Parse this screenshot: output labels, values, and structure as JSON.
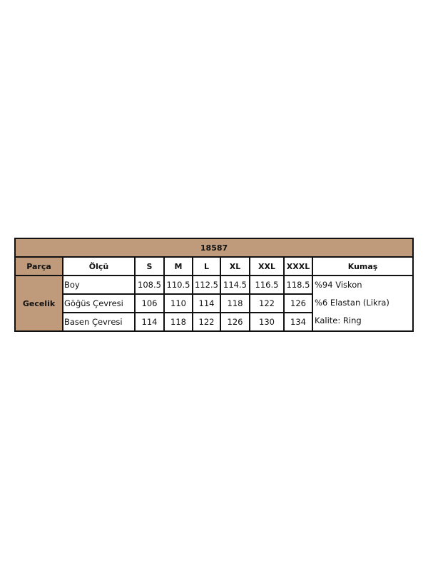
{
  "title": "18587",
  "colors": {
    "header_bg": "#bf9b7b",
    "border": "#111111"
  },
  "headers": [
    "Parça",
    "Ölçü",
    "S",
    "M",
    "L",
    "XL",
    "XXL",
    "XXXL",
    "Kumaş"
  ],
  "part": "Gecelik",
  "rows": [
    {
      "measure": "Boy",
      "values": [
        "108.5",
        "110.5",
        "112.5",
        "114.5",
        "116.5",
        "118.5"
      ]
    },
    {
      "measure": "Göğüs Çevresi",
      "values": [
        "106",
        "110",
        "114",
        "118",
        "122",
        "126"
      ]
    },
    {
      "measure": "Basen Çevresi",
      "values": [
        "114",
        "118",
        "122",
        "126",
        "130",
        "134"
      ]
    }
  ],
  "fabric": [
    "%94 Viskon",
    "%6 Elastan (Likra)",
    "Kalite: Ring"
  ]
}
